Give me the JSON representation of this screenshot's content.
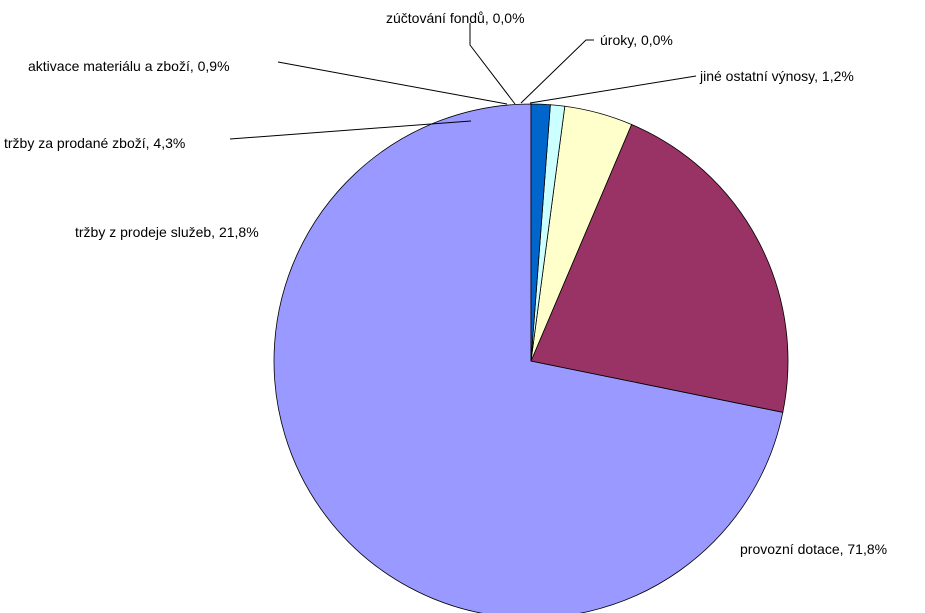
{
  "chart_data": {
    "type": "pie",
    "title": "",
    "slices": [
      {
        "label": "provozní dotace",
        "value": 71.8,
        "display": "provozní dotace, 71,8%",
        "color": "#9999ff"
      },
      {
        "label": "tržby z prodeje služeb",
        "value": 21.8,
        "display": "tržby z prodeje služeb, 21,8%",
        "color": "#993366"
      },
      {
        "label": "tržby za prodané zboží",
        "value": 4.3,
        "display": "tržby za prodané zboží, 4,3%",
        "color": "#ffffcc"
      },
      {
        "label": "aktivace materiálu a zboží",
        "value": 0.9,
        "display": "aktivace materiálu a zboží, 0,9%",
        "color": "#ccffff"
      },
      {
        "label": "zúčtování fondů",
        "value": 0.0,
        "display": "zúčtování fondů, 0,0%",
        "color": "#660066"
      },
      {
        "label": "úroky",
        "value": 0.0,
        "display": "úroky, 0,0%",
        "color": "#ff8080"
      },
      {
        "label": "jiné ostatní výnosy",
        "value": 1.2,
        "display": "jiné ostatní výnosy, 1,2%",
        "color": "#0066cc"
      }
    ],
    "start_angle_deg": 0,
    "direction": "counterclockwise",
    "legend": "none",
    "data_labels": "outside-with-leader-lines"
  }
}
